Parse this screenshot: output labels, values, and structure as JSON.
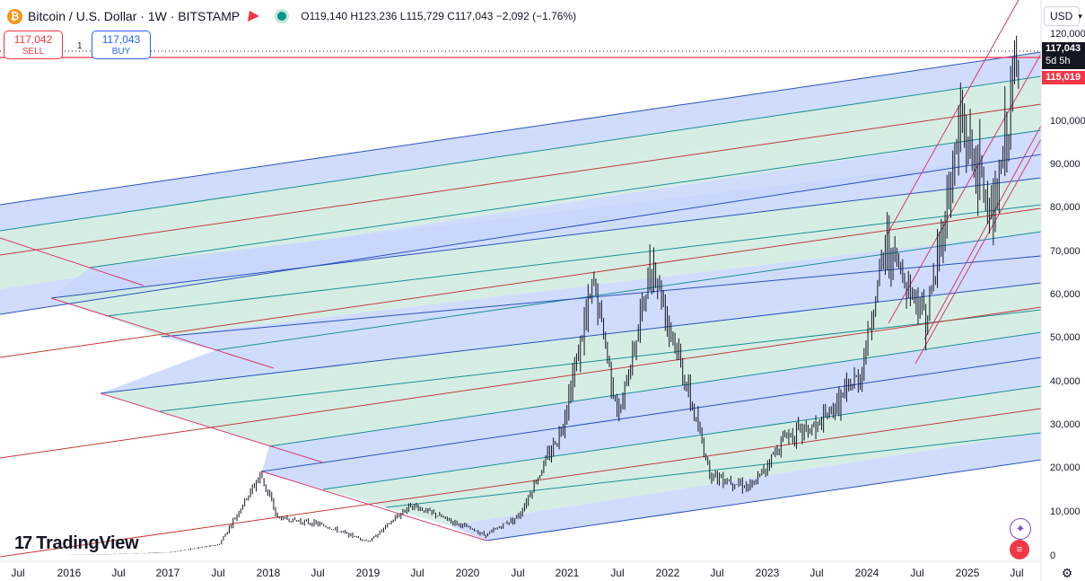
{
  "header": {
    "title": "Bitcoin / U.S. Dollar · 1W · BITSTAMP",
    "ohlc": "O119,140 H123,236 L115,729 C117,043 −2,092 (−1.76%)"
  },
  "trade": {
    "sell_price": "117,042",
    "sell_label": "SELL",
    "spread": "1",
    "buy_price": "117,043",
    "buy_label": "BUY"
  },
  "currency": "USD",
  "price_tags": {
    "last": "117,043",
    "countdown": "5d 5h",
    "line": "115,019"
  },
  "y_axis": [
    "120,000",
    "100,000",
    "90,000",
    "80,000",
    "70,000",
    "60,000",
    "50,000",
    "40,000",
    "30,000",
    "20,000",
    "10,000",
    "0"
  ],
  "x_axis": [
    "Jul",
    "2016",
    "Jul",
    "2017",
    "Jul",
    "2018",
    "Jul",
    "2019",
    "Jul",
    "2020",
    "Jul",
    "2021",
    "Jul",
    "2022",
    "Jul",
    "2023",
    "Jul",
    "2024",
    "Jul",
    "2025",
    "Jul"
  ],
  "logo": "TradingView",
  "colors": {
    "blue_fill": "#c8d6fb",
    "green_fill": "#cfeadf",
    "blue_line": "#2a52be",
    "teal_line": "#1a8f99",
    "red_line": "#c43b3b",
    "pink_line": "#d43a6a",
    "price_line": "#f23645"
  },
  "chart_data": {
    "type": "candlestick",
    "series": [
      {
        "name": "Bitcoin / U.S. Dollar",
        "x": [
          "2016-01",
          "2016-07",
          "2017-01",
          "2017-07",
          "2017-12",
          "2018-02",
          "2018-07",
          "2019-01",
          "2019-06",
          "2020-03",
          "2020-07",
          "2020-12",
          "2021-04",
          "2021-07",
          "2021-11",
          "2022-06",
          "2022-11",
          "2023-03",
          "2023-07",
          "2023-12",
          "2024-03",
          "2024-08",
          "2024-12",
          "2025-04",
          "2025-07"
        ],
        "values": [
          430,
          650,
          1000,
          2800,
          19000,
          9000,
          7500,
          3500,
          12000,
          5000,
          9500,
          29000,
          63000,
          32000,
          68000,
          19000,
          16000,
          28000,
          30000,
          42000,
          72000,
          55000,
          100000,
          78000,
          117043
        ]
      }
    ],
    "ylim": [
      0,
      125000
    ]
  }
}
